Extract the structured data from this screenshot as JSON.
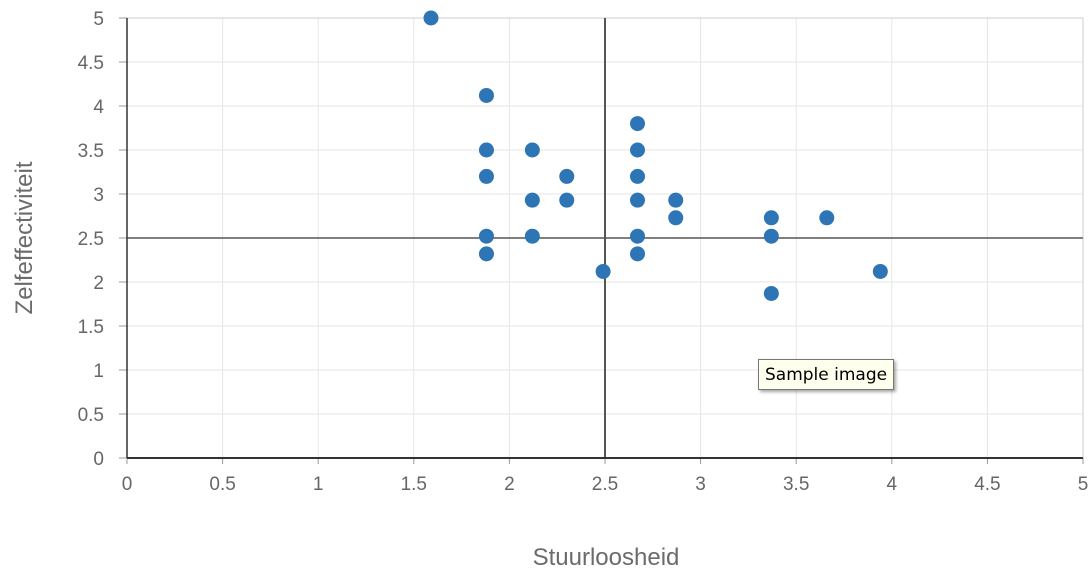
{
  "chart_data": {
    "type": "scatter",
    "xlabel": "Stuurloosheid",
    "ylabel": "Zelfeffectiviteit",
    "xlim": [
      0,
      5
    ],
    "ylim": [
      0,
      5
    ],
    "x_ticks": [
      "0",
      "0.5",
      "1",
      "1.5",
      "2",
      "2.5",
      "3",
      "3.5",
      "4",
      "4.5",
      "5"
    ],
    "y_ticks": [
      "0",
      "0.5",
      "1",
      "1.5",
      "2",
      "2.5",
      "3",
      "3.5",
      "4",
      "4.5",
      "5"
    ],
    "grid": true,
    "reference_lines": {
      "x": 2.5,
      "y": 2.5
    },
    "marker_color": "#2e75b6",
    "points": [
      {
        "x": 1.59,
        "y": 5.0
      },
      {
        "x": 1.88,
        "y": 4.12
      },
      {
        "x": 1.88,
        "y": 3.5
      },
      {
        "x": 1.88,
        "y": 3.2
      },
      {
        "x": 1.88,
        "y": 2.52
      },
      {
        "x": 1.88,
        "y": 2.32
      },
      {
        "x": 2.12,
        "y": 3.5
      },
      {
        "x": 2.12,
        "y": 2.93
      },
      {
        "x": 2.12,
        "y": 2.52
      },
      {
        "x": 2.3,
        "y": 3.2
      },
      {
        "x": 2.3,
        "y": 2.93
      },
      {
        "x": 2.49,
        "y": 2.12
      },
      {
        "x": 2.67,
        "y": 3.8
      },
      {
        "x": 2.67,
        "y": 3.5
      },
      {
        "x": 2.67,
        "y": 3.2
      },
      {
        "x": 2.67,
        "y": 2.93
      },
      {
        "x": 2.67,
        "y": 2.52
      },
      {
        "x": 2.67,
        "y": 2.32
      },
      {
        "x": 2.87,
        "y": 2.93
      },
      {
        "x": 2.87,
        "y": 2.73
      },
      {
        "x": 3.37,
        "y": 2.73
      },
      {
        "x": 3.37,
        "y": 2.52
      },
      {
        "x": 3.37,
        "y": 1.87
      },
      {
        "x": 3.66,
        "y": 2.73
      },
      {
        "x": 3.94,
        "y": 2.12
      }
    ]
  },
  "tooltip": {
    "text": "Sample image"
  }
}
